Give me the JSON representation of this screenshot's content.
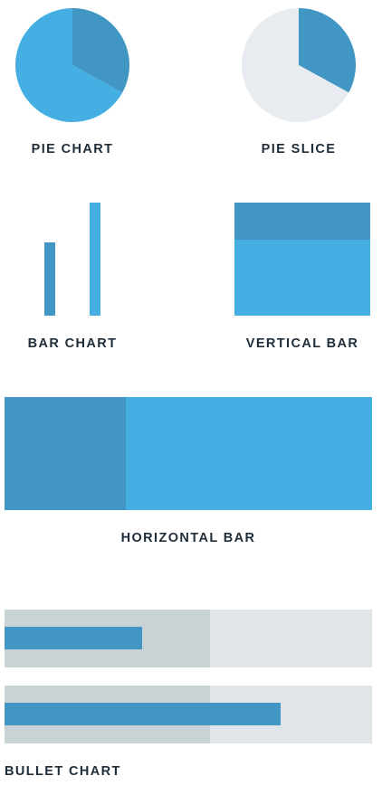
{
  "colors": {
    "primary": "#45aee3",
    "dark": "#4196c3",
    "light_gray": "#e8ecf0",
    "range_dark": "#c9d2d5",
    "range_light": "#e0e6e8",
    "text": "#1f2d3a"
  },
  "chart_data": [
    {
      "type": "pie",
      "title": "PIE CHART",
      "slices": [
        {
          "value": 33
        },
        {
          "value": 67
        }
      ]
    },
    {
      "type": "pie",
      "title": "PIE SLICE",
      "slices": [
        {
          "value": 33
        },
        {
          "value": 67
        }
      ]
    },
    {
      "type": "bar",
      "title": "BAR CHART",
      "values": [
        65,
        100
      ],
      "ylim": [
        0,
        100
      ]
    },
    {
      "type": "bar",
      "title": "VERTICAL BAR",
      "orientation": "vertical-stacked",
      "values": [
        33,
        67
      ]
    },
    {
      "type": "bar",
      "title": "HORIZONTAL BAR",
      "orientation": "horizontal-stacked",
      "values": [
        33,
        67
      ]
    },
    {
      "type": "bar",
      "title": "BULLET CHART",
      "orientation": "bullet",
      "bullets": [
        {
          "value": 37.5,
          "range": 56
        },
        {
          "value": 75,
          "range": 56
        }
      ]
    }
  ]
}
